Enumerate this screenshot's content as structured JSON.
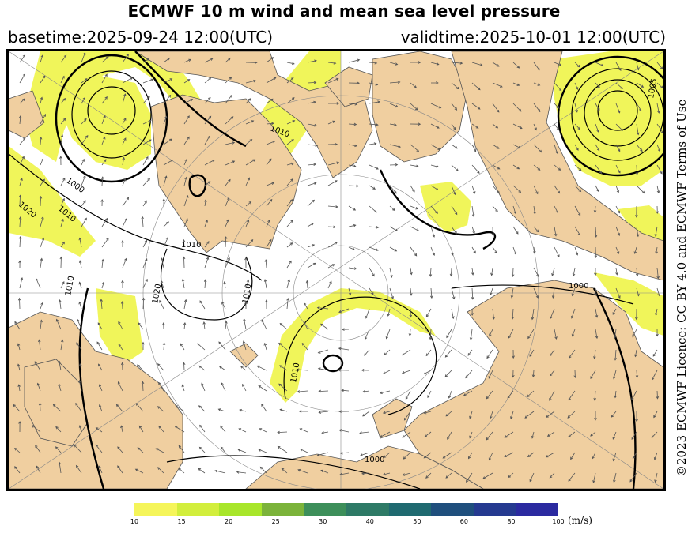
{
  "title": "ECMWF 10 m wind and mean sea level pressure",
  "basetime": "basetime:2025-09-24 12:00(UTC)",
  "validtime": "validtime:2025-10-01 12:00(UTC)",
  "licence": "©2023 ECMWF Licence: CC BY 4.0 and ECMWF Terms of Use",
  "isobar_labels": [
    "1000",
    "1010",
    "1020",
    "1010",
    "1010",
    "1020",
    "1010",
    "1000",
    "1000",
    "1010",
    "1010",
    "1005"
  ],
  "colorbar": {
    "unit": "(m/s)",
    "ticks": [
      "10",
      "15",
      "20",
      "25",
      "30",
      "40",
      "50",
      "60",
      "80",
      "100"
    ],
    "colors": [
      "#f5f55a",
      "#d2ee3c",
      "#a8e62a",
      "#7bb33a",
      "#3d8f5a",
      "#2e7a66",
      "#1f6a70",
      "#1f4f7d",
      "#253a90",
      "#2b2aa0"
    ]
  },
  "palette": {
    "land": "#f0cfa0",
    "sea": "#ffffff",
    "wind_fill": "#f0f55a",
    "isobar": "#000000",
    "arrow": "#555555"
  }
}
